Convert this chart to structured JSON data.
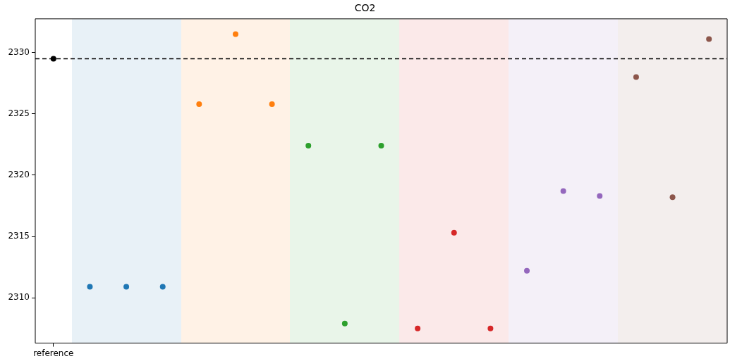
{
  "chart_data": {
    "type": "scatter",
    "title": "CO2",
    "marker": "circle",
    "grid": false,
    "legend": false,
    "categories": [
      "reference",
      null,
      null,
      null,
      null,
      null,
      null,
      null,
      null,
      null,
      null,
      null,
      null,
      null,
      null,
      null,
      null,
      null,
      null
    ],
    "ylim": [
      2306.3,
      2332.75
    ],
    "yticks": [
      2310,
      2315,
      2320,
      2325,
      2330
    ],
    "series": [
      {
        "color": "#000000",
        "values": [
          2329.5,
          null,
          null,
          null,
          null,
          null,
          null,
          null,
          null,
          null,
          null,
          null,
          null,
          null,
          null,
          null,
          null,
          null,
          null
        ]
      },
      {
        "color": "#1f77b4",
        "values": [
          null,
          2310.9,
          2310.9,
          2310.9,
          null,
          null,
          null,
          null,
          null,
          null,
          null,
          null,
          null,
          null,
          null,
          null,
          null,
          null,
          null
        ]
      },
      {
        "color": "#ff7f0e",
        "values": [
          null,
          null,
          null,
          null,
          2325.8,
          2331.5,
          2325.8,
          null,
          null,
          null,
          null,
          null,
          null,
          null,
          null,
          null,
          null,
          null,
          null
        ]
      },
      {
        "color": "#2ca02c",
        "values": [
          null,
          null,
          null,
          null,
          null,
          null,
          null,
          2322.4,
          2307.9,
          2322.4,
          null,
          null,
          null,
          null,
          null,
          null,
          null,
          null,
          null
        ]
      },
      {
        "color": "#d62728",
        "values": [
          null,
          null,
          null,
          null,
          null,
          null,
          null,
          null,
          null,
          null,
          2307.5,
          2315.3,
          2307.5,
          null,
          null,
          null,
          null,
          null,
          null
        ]
      },
      {
        "color": "#9467bd",
        "values": [
          null,
          null,
          null,
          null,
          null,
          null,
          null,
          null,
          null,
          null,
          null,
          null,
          null,
          2312.2,
          2318.7,
          2318.3,
          null,
          null,
          null
        ]
      },
      {
        "color": "#8c564b",
        "values": [
          null,
          null,
          null,
          null,
          null,
          null,
          null,
          null,
          null,
          null,
          null,
          null,
          null,
          null,
          null,
          null,
          2328.0,
          2318.2,
          2331.1
        ]
      }
    ],
    "ref_lines": [
      {
        "axis": "y",
        "value": 2329.5,
        "color": "#000000",
        "line_style": "dashed"
      }
    ]
  }
}
